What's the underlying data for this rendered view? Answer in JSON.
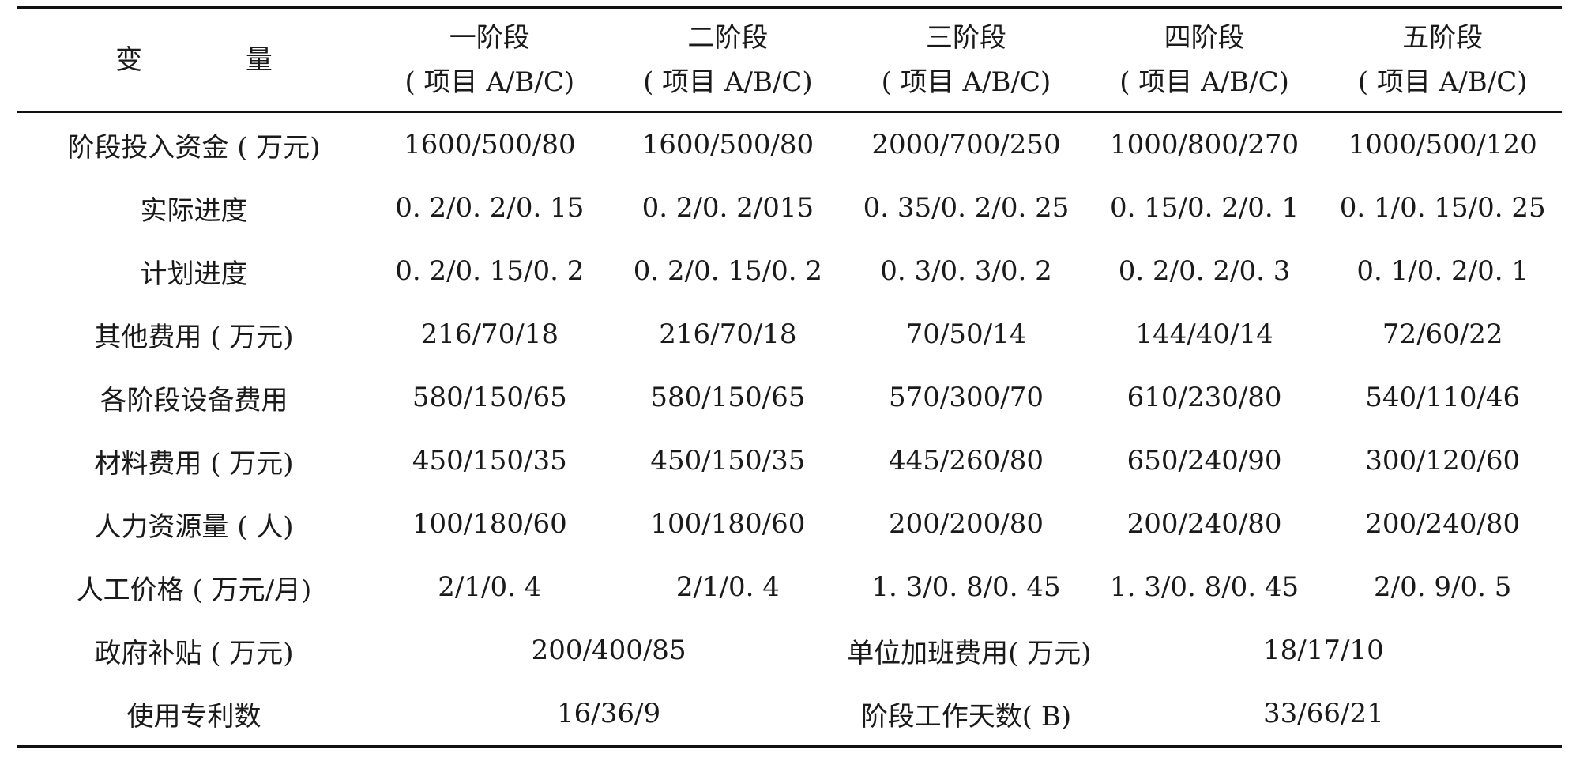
{
  "table": {
    "header": {
      "variable": "变 量",
      "stages": [
        {
          "name": "一阶段",
          "sub": "( 项目 A/B/C)"
        },
        {
          "name": "二阶段",
          "sub": "( 项目 A/B/C)"
        },
        {
          "name": "三阶段",
          "sub": "( 项目 A/B/C)"
        },
        {
          "name": "四阶段",
          "sub": "( 项目 A/B/C)"
        },
        {
          "name": "五阶段",
          "sub": "( 项目 A/B/C)"
        }
      ]
    },
    "rows": [
      {
        "label": "阶段投入资金 ( 万元)",
        "values": [
          "1600/500/80",
          "1600/500/80",
          "2000/700/250",
          "1000/800/270",
          "1000/500/120"
        ]
      },
      {
        "label": "实际进度",
        "values": [
          "0. 2/0. 2/0. 15",
          "0. 2/0. 2/015",
          "0. 35/0. 2/0. 25",
          "0. 15/0. 2/0. 1",
          "0. 1/0. 15/0. 25"
        ]
      },
      {
        "label": "计划进度",
        "values": [
          "0. 2/0. 15/0. 2",
          "0. 2/0. 15/0. 2",
          "0. 3/0. 3/0. 2",
          "0. 2/0. 2/0. 3",
          "0. 1/0. 2/0. 1"
        ]
      },
      {
        "label": "其他费用 ( 万元)",
        "values": [
          "216/70/18",
          "216/70/18",
          "70/50/14",
          "144/40/14",
          "72/60/22"
        ]
      },
      {
        "label": "各阶段设备费用",
        "values": [
          "580/150/65",
          "580/150/65",
          "570/300/70",
          "610/230/80",
          "540/110/46"
        ]
      },
      {
        "label": "材料费用 ( 万元)",
        "values": [
          "450/150/35",
          "450/150/35",
          "445/260/80",
          "650/240/90",
          "300/120/60"
        ]
      },
      {
        "label": "人力资源量 ( 人)",
        "values": [
          "100/180/60",
          "100/180/60",
          "200/200/80",
          "200/240/80",
          "200/240/80"
        ]
      },
      {
        "label": "人工价格 ( 万元/月)",
        "values": [
          "2/1/0. 4",
          "2/1/0. 4",
          "1. 3/0. 8/0. 45",
          "1. 3/0. 8/0. 45",
          "2/0. 9/0. 5"
        ]
      }
    ],
    "split_rows": [
      {
        "label": "政府补贴 ( 万元)",
        "value": "200/400/85",
        "label2": "单位加班费用( 万元)",
        "value2": "18/17/10"
      },
      {
        "label": "使用专利数",
        "value": "16/36/9",
        "label2": "阶段工作天数( B)",
        "value2": "33/66/21"
      }
    ]
  }
}
